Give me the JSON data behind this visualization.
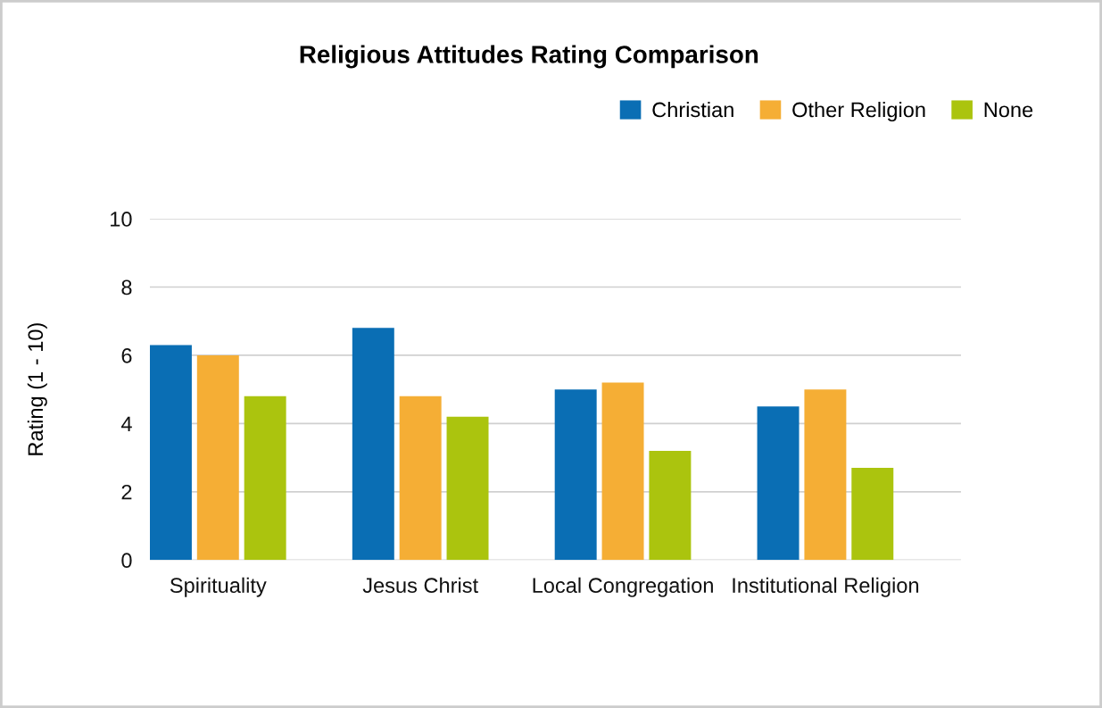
{
  "chart_data": {
    "type": "bar",
    "title": "Religious Attitudes Rating Comparison",
    "ylabel": "Rating (1 - 10)",
    "categories": [
      "Spirituality",
      "Jesus Christ",
      "Local Congregation",
      "Institutional Religion"
    ],
    "series": [
      {
        "name": "Christian",
        "color": "#0a6eb4",
        "values": [
          6.3,
          6.8,
          5.0,
          4.5
        ]
      },
      {
        "name": "Other Religion",
        "color": "#f5ae35",
        "values": [
          6.0,
          4.8,
          5.2,
          5.0
        ]
      },
      {
        "name": "None",
        "color": "#abc40e",
        "values": [
          4.8,
          4.2,
          3.2,
          2.7
        ]
      }
    ],
    "ylim": [
      0,
      10
    ],
    "yticks": [
      0,
      2,
      4,
      6,
      8,
      10
    ],
    "grid": "y",
    "legend": "top right"
  }
}
